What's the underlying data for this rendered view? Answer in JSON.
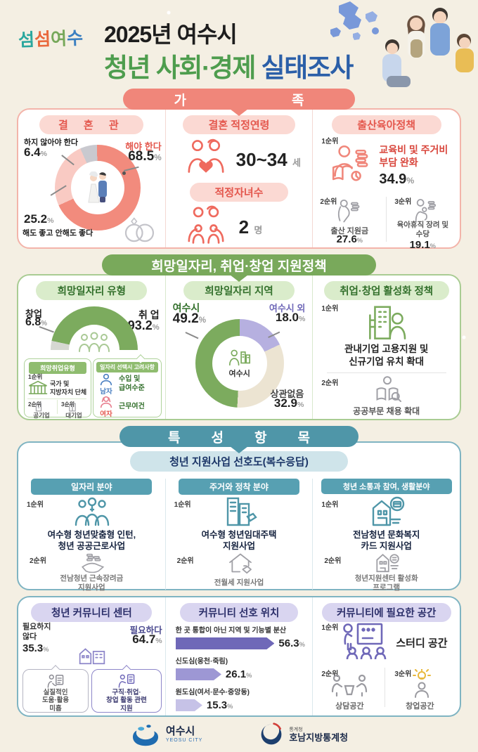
{
  "units": {
    "percent": "%",
    "age": "세",
    "count": "명"
  },
  "ranks": {
    "r1": "1순위",
    "r2": "2순위",
    "r3": "3순위"
  },
  "header": {
    "logo_chars": [
      "섬",
      "섬",
      "여",
      "수"
    ],
    "title_line1": "2025년 여수시",
    "title_word1": "청년",
    "title_word2": "사회·경제",
    "title_word3": "실태조사"
  },
  "family": {
    "banner": "가족",
    "marriage": {
      "title": "결 혼 관",
      "no_label": "하지 않아야 한다",
      "no_value": "6.4",
      "yes_label": "해야 한다",
      "yes_value": "68.5",
      "neutral_value": "25.2",
      "neutral_label": "해도 좋고 안해도 좋다"
    },
    "age": {
      "title": "결혼 적정연령",
      "value": "30~34"
    },
    "children": {
      "title": "적정자녀수",
      "value": "2"
    },
    "policy": {
      "title": "출산육아정책",
      "first_label": "교육비 및 주거비\n부담 완화",
      "first_value": "34.9",
      "second_label": "출산 지원금",
      "second_value": "27.6",
      "third_label": "육아휴직 장려 및\n수당",
      "third_value": "19.1"
    }
  },
  "jobs": {
    "banner": "희망일자리, 취업·창업 지원정책",
    "type": {
      "title": "희망일자리 유형",
      "startup_label": "창업",
      "startup_value": "6.8",
      "employ_label": "취 업",
      "employ_value": "93.2",
      "sub_left_title": "희망취업유형",
      "sub_left_first": "국가 및\n지방자치 단체",
      "sub_left_second": "공기업",
      "sub_left_third": "대기업",
      "sub_right_title": "일자리 선택시 고려사항",
      "male": "남자",
      "male_text": "수입 및\n급여수준",
      "female": "여자",
      "female_text": "근무여건"
    },
    "region": {
      "title": "희망일자리 지역",
      "yeosu_label": "여수시",
      "yeosu_value": "49.2",
      "outside_label": "여수시 외",
      "outside_value": "18.0",
      "any_label": "상관없음",
      "any_value": "32.9",
      "center_label": "여수시"
    },
    "policy": {
      "title": "취업·창업 활성화 정책",
      "first": "관내기업 고용지원 및\n신규기업 유치 확대",
      "second": "공공부문 채용 확대"
    }
  },
  "special": {
    "banner": "특성항목",
    "pref": {
      "title": "청년 지원사업 선호도(복수응답)",
      "col1_header": "일자리 분야",
      "col1_first": "여수형 청년맞춤형 인턴,\n청년 공공근로사업",
      "col1_second": "전남청년 근속장려금\n지원사업",
      "col2_header": "주거와 정착 분야",
      "col2_first": "여수형 청년임대주택\n지원사업",
      "col2_second": "전월세 지원사업",
      "col3_header": "청년 소통과 참여, 생활분야",
      "col3_first": "전남청년 문화복지\n카드 지원사업",
      "col3_second": "청년지원센터 활성화\n프로그램"
    },
    "center": {
      "title": "청년 커뮤니티 센터",
      "no_label": "필요하지\n않다",
      "no_value": "35.3",
      "yes_label": "필요하다",
      "yes_value": "64.7",
      "reason_no": "실질적인\n도움·활용\n미흡",
      "reason_yes": "구직·취업·\n창업 활동 관련\n지원"
    },
    "location": {
      "title": "커뮤니티 선호 위치",
      "bars": [
        {
          "label": "한 곳 통합이 아닌 지역 및 기능별 분산",
          "value": "56.3"
        },
        {
          "label": "신도심(웅천·죽림)",
          "value": "26.1"
        },
        {
          "label": "원도심(여서·문수·중앙동)",
          "value": "15.3"
        }
      ]
    },
    "space": {
      "title": "커뮤니티에 필요한 공간",
      "first": "스터디 공간",
      "second": "상담공간",
      "third": "창업공간"
    }
  },
  "footer": {
    "yeosu": "여수시",
    "yeosu_en": "YEOSU CITY",
    "stats_small": "통계청",
    "stats_name": "호남지방통계청"
  },
  "chart_data": [
    {
      "type": "pie",
      "title": "결혼관",
      "start_deg": -24,
      "legend_position": "around",
      "segments": [
        {
          "label": "하지 않아야 한다",
          "value": 6.4,
          "color": "#c9c9cf"
        },
        {
          "label": "해야 한다",
          "value": 68.5,
          "color": "#f28b7d"
        },
        {
          "label": "해도 좋고 안해도 좋다",
          "value": 25.2,
          "color": "#f9cac3"
        }
      ]
    },
    {
      "type": "gauge",
      "title": "희망일자리 유형",
      "segments": [
        {
          "label": "창업",
          "value": 6.8,
          "color": "#d6d8d2"
        },
        {
          "label": "취업",
          "value": 93.2,
          "color": "#7cab5e"
        }
      ]
    },
    {
      "type": "pie",
      "title": "희망일자리 지역",
      "start_deg": 0,
      "legend_position": "around",
      "segments": [
        {
          "label": "여수시 외",
          "value": 18.0,
          "color": "#b6b0e0"
        },
        {
          "label": "상관없음",
          "value": 32.9,
          "color": "#ece4d2"
        },
        {
          "label": "여수시",
          "value": 49.2,
          "color": "#7cab5e"
        }
      ]
    },
    {
      "type": "gauge",
      "title": "청년 커뮤니티 센터",
      "segments": [
        {
          "label": "필요하지 않다",
          "value": 35.3,
          "color": "#deddе6"
        },
        {
          "label": "필요하다",
          "value": 64.7,
          "color": "#8d86c9"
        }
      ]
    },
    {
      "type": "bar",
      "title": "커뮤니티 선호 위치",
      "categories": [
        "한 곳 통합이 아닌 지역 및 기능별 분산",
        "신도심(웅천·죽림)",
        "원도심(여서·문수·중앙동)"
      ],
      "values": [
        56.3,
        26.1,
        15.3
      ],
      "colors": [
        "#6f68b8",
        "#9d97d4",
        "#c6c2e7"
      ],
      "xlim": [
        0,
        60
      ]
    }
  ]
}
